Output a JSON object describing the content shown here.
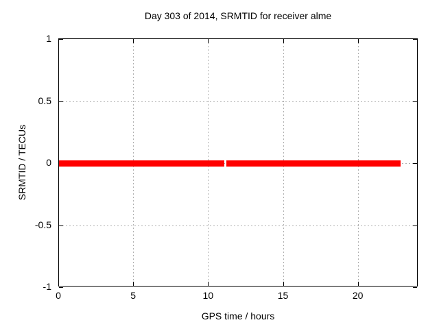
{
  "chart_data": {
    "type": "line",
    "title": "Day 303 of 2014, SRMTID for receiver alme",
    "xlabel": "GPS time / hours",
    "ylabel": "SRMTID / TECUs",
    "xlim": [
      0,
      24
    ],
    "ylim": [
      -1,
      1
    ],
    "xticks": [
      0,
      5,
      10,
      15,
      20
    ],
    "xtick_labels": [
      "0",
      "5",
      "10",
      "15",
      "20"
    ],
    "yticks": [
      1,
      0.5,
      0,
      -0.5,
      -1
    ],
    "ytick_labels": [
      "1",
      "0.5",
      "0",
      "-0.5",
      "-1"
    ],
    "grid": true,
    "legend_position": "none",
    "axis_ticks_mirrored": true,
    "colors": {
      "background": "#ffffff",
      "axis": "#000000",
      "grid": "#b0b0b0",
      "text": "#000000",
      "series": "#ff0000"
    },
    "series": [
      {
        "name": "SRMTID",
        "color": "#ff0000",
        "style": "thick-horizontal-line",
        "y_value": 0,
        "line_thickness_px": 9,
        "segments_x_hours": [
          [
            0,
            11.03
          ],
          [
            11.17,
            22.81
          ]
        ]
      }
    ]
  }
}
